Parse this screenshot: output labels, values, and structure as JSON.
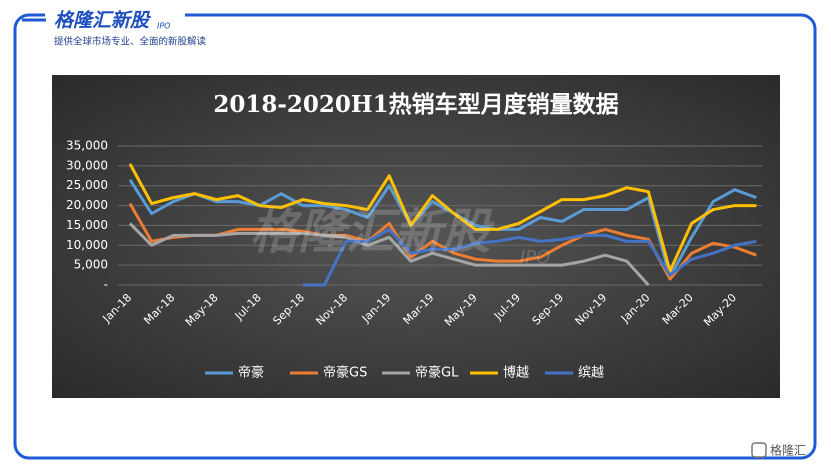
{
  "header": {
    "brand": "格隆汇新股",
    "brand_tag": "IPO",
    "tagline": "提供全球市场专业、全面的新股解读",
    "watermark": "格隆汇新股",
    "watermark_tag": "IPO",
    "footer_logo": "格隆汇"
  },
  "chart_data": {
    "type": "line",
    "title": "2018-2020H1热销车型月度销量数据",
    "categories": [
      "Jan-18",
      null,
      "Mar-18",
      null,
      "May-18",
      null,
      "Jul-18",
      null,
      "Sep-18",
      null,
      "Nov-18",
      null,
      "Jan-19",
      null,
      "Mar-19",
      null,
      "May-19",
      null,
      "Jul-19",
      null,
      "Sep-19",
      null,
      "Nov-19",
      null,
      "Jan-20",
      null,
      "Mar-20",
      null,
      "May-20",
      null
    ],
    "ylim": [
      0,
      35000
    ],
    "yticks": [
      {
        "value": 0,
        "label": "-"
      },
      {
        "value": 5000,
        "label": "5,000"
      },
      {
        "value": 10000,
        "label": "10,000"
      },
      {
        "value": 15000,
        "label": "15,000"
      },
      {
        "value": 20000,
        "label": "20,000"
      },
      {
        "value": 25000,
        "label": "25,000"
      },
      {
        "value": 30000,
        "label": "30,000"
      },
      {
        "value": 35000,
        "label": "35,000"
      }
    ],
    "grid": true,
    "legend": "bottom",
    "series": [
      {
        "name": "帝豪",
        "color": "#5b9bd5",
        "values": [
          26500,
          18000,
          21000,
          23000,
          21000,
          21000,
          20000,
          23000,
          20000,
          20000,
          19000,
          17000,
          25000,
          15000,
          21000,
          18000,
          15000,
          14000,
          14000,
          17000,
          16000,
          19000,
          19000,
          19000,
          22000,
          2000,
          12000,
          21000,
          24000,
          22000
        ]
      },
      {
        "name": "帝豪GS",
        "color": "#ed7d31",
        "values": [
          20500,
          11000,
          12000,
          12500,
          12500,
          14000,
          14000,
          14000,
          13500,
          12500,
          12500,
          11000,
          15500,
          7000,
          11000,
          8000,
          6500,
          6000,
          6000,
          7000,
          10000,
          12500,
          14000,
          12500,
          11500,
          1500,
          8000,
          10500,
          9500,
          7500
        ]
      },
      {
        "name": "帝豪GL",
        "color": "#a5a5a5",
        "values": [
          15500,
          10000,
          12500,
          12500,
          12500,
          13000,
          13000,
          13000,
          13000,
          12500,
          12000,
          10000,
          12000,
          6000,
          8000,
          6500,
          5000,
          5000,
          5000,
          5000,
          5000,
          6000,
          7500,
          6000,
          0,
          null,
          null,
          null,
          null,
          null
        ]
      },
      {
        "name": "博越",
        "color": "#ffc000",
        "values": [
          30500,
          20500,
          22000,
          23000,
          21500,
          22500,
          20000,
          19500,
          21500,
          20500,
          20000,
          19000,
          27500,
          15000,
          22500,
          18000,
          14000,
          14000,
          15500,
          18500,
          21500,
          21500,
          22500,
          24500,
          23500,
          3500,
          15500,
          19000,
          20000,
          20000
        ]
      },
      {
        "name": "缤越",
        "color": "#4472c4",
        "values": [
          null,
          null,
          null,
          null,
          null,
          null,
          null,
          null,
          0,
          0,
          11000,
          11000,
          14000,
          8000,
          9000,
          9000,
          10500,
          11000,
          12000,
          11000,
          11500,
          12500,
          12500,
          11000,
          11000,
          2500,
          6500,
          8000,
          10000,
          11000
        ]
      }
    ]
  }
}
